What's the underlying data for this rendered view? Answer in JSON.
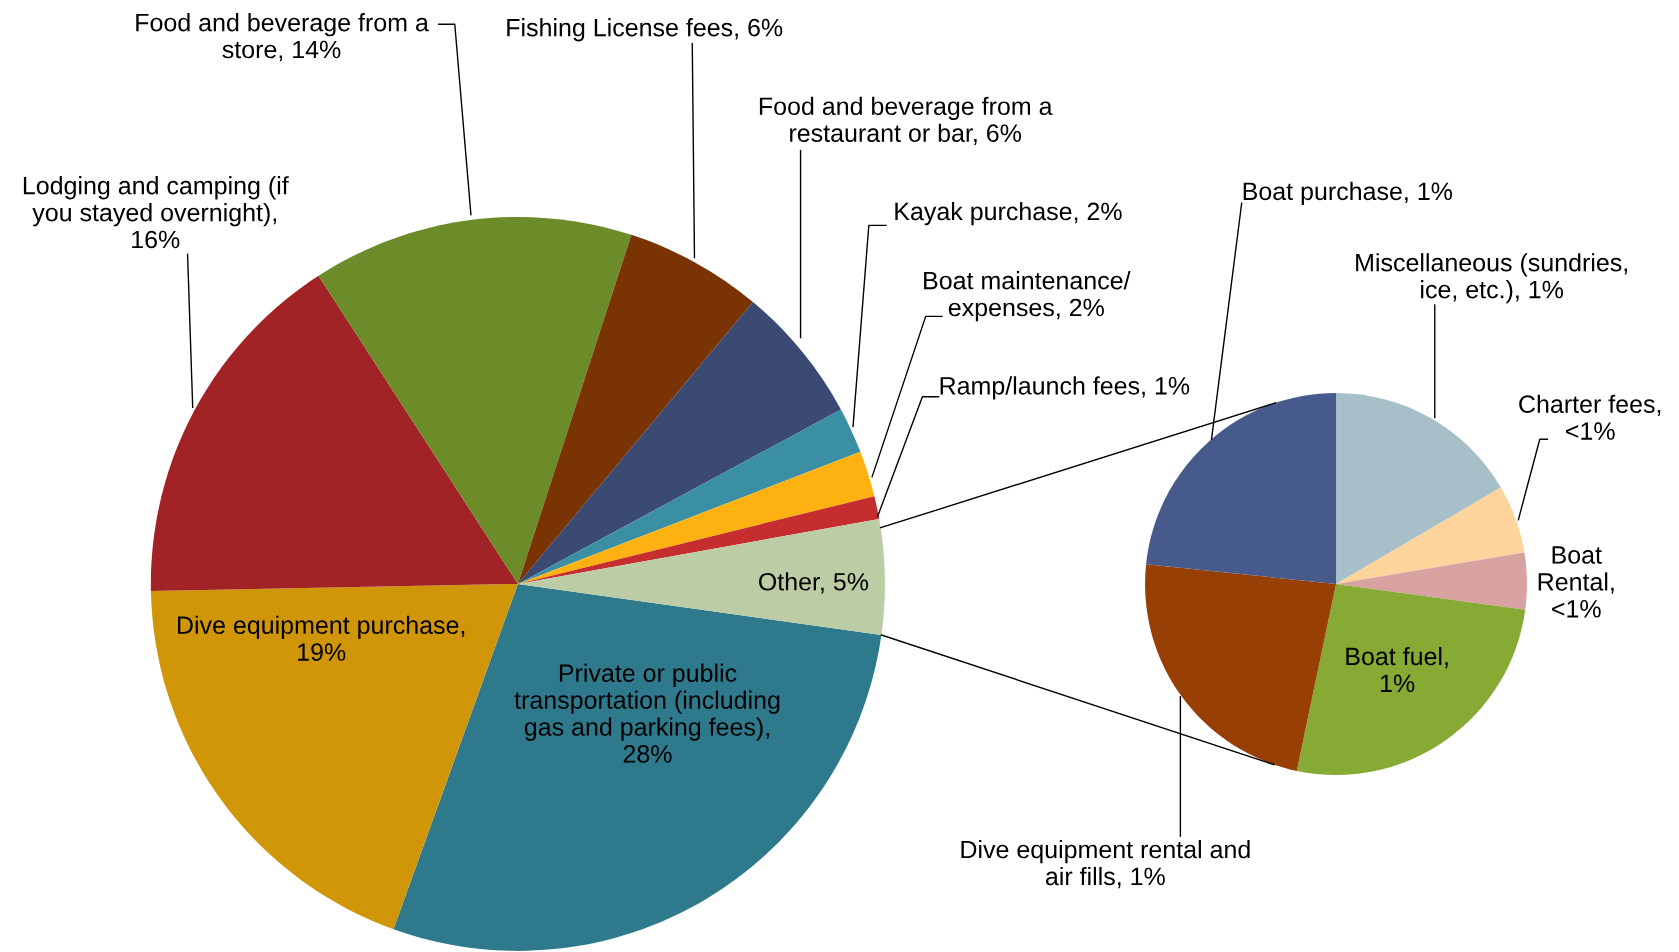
{
  "chart_data": [
    {
      "type": "pie",
      "categories": [
        "Private or public\ntransportation (including\ngas and parking fees),\n28%",
        "Dive equipment purchase,\n19%",
        "Lodging and camping (if\nyou stayed overnight),\n16%",
        "Food and beverage from a\nstore, 14%",
        "Fishing License fees, 6%",
        "Food and beverage from a\nrestaurant or bar, 6%",
        "Kayak purchase, 2%",
        "Boat maintenance/\nexpenses, 2%",
        "Ramp/launch fees, 1%",
        "Other, 5%"
      ],
      "values": [
        28,
        19,
        16,
        14,
        6,
        6,
        2,
        2,
        1,
        5
      ],
      "colors": [
        "#2e7a8c",
        "#d09608",
        "#a12326",
        "#6b8c29",
        "#7a3404",
        "#3b4a73",
        "#3a8fa5",
        "#fdb212",
        "#c62d2f",
        "#bccda5"
      ]
    },
    {
      "type": "pie",
      "categories": [
        "Miscellaneous (sundries,\nice, etc.), 1%",
        "Charter fees,\n<1%",
        "Boat\nRental,\n<1%",
        "Boat fuel,\n1%",
        "Dive equipment rental and\nair fills, 1%",
        "Boat purchase, 1%"
      ],
      "values": [
        0.83,
        0.29,
        0.24,
        1.31,
        1.17,
        1.17
      ],
      "colors": [
        "#a6bfc9",
        "#fcd49c",
        "#d8a2a2",
        "#87aa35",
        "#973f05",
        "#465a8b"
      ]
    }
  ]
}
